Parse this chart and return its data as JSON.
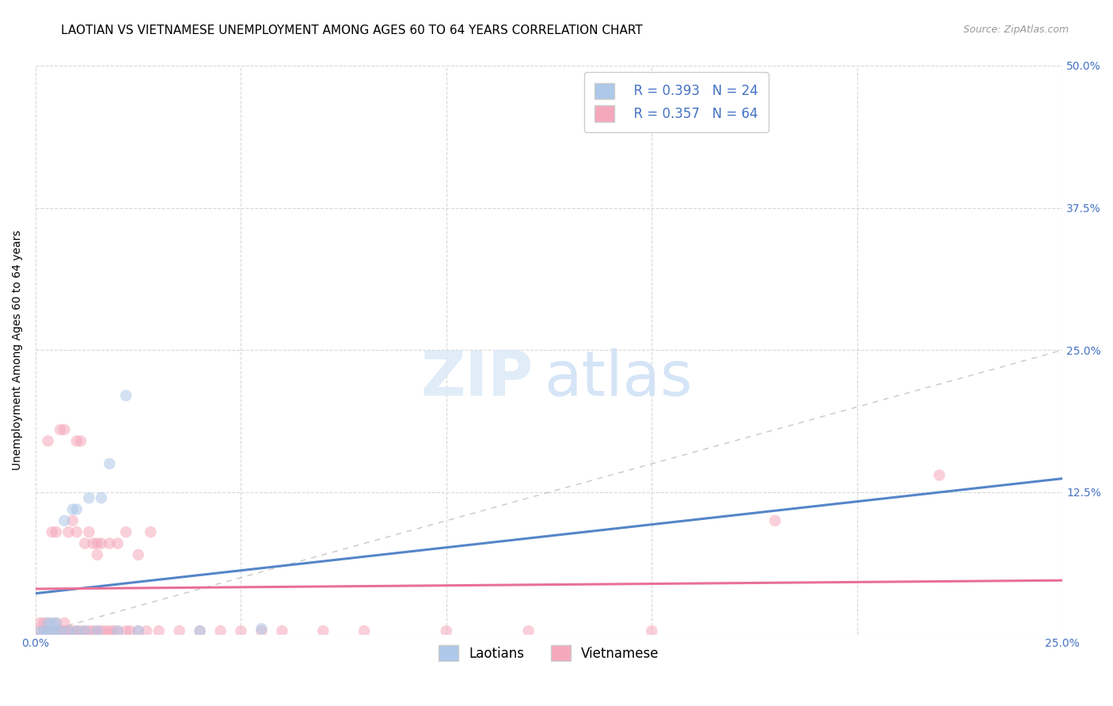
{
  "title": "LAOTIAN VS VIETNAMESE UNEMPLOYMENT AMONG AGES 60 TO 64 YEARS CORRELATION CHART",
  "source": "Source: ZipAtlas.com",
  "ylabel": "Unemployment Among Ages 60 to 64 years",
  "xlim": [
    0.0,
    0.25
  ],
  "ylim": [
    0.0,
    0.5
  ],
  "xticks": [
    0.0,
    0.05,
    0.1,
    0.15,
    0.2,
    0.25
  ],
  "yticks": [
    0.0,
    0.125,
    0.25,
    0.375,
    0.5
  ],
  "xtick_labels": [
    "0.0%",
    "",
    "",
    "",
    "",
    "25.0%"
  ],
  "ytick_labels_right": [
    "",
    "12.5%",
    "25.0%",
    "37.5%",
    "50.0%"
  ],
  "laotian_R": "0.393",
  "laotian_N": "24",
  "vietnamese_R": "0.357",
  "vietnamese_N": "64",
  "laotian_color": "#adc8e8",
  "vietnamese_color": "#f5a8bc",
  "laotian_line_color": "#5585c8",
  "vietnamese_line_color": "#e87098",
  "diagonal_color": "#c8c8c8",
  "laotian_x": [
    0.001,
    0.002,
    0.003,
    0.003,
    0.004,
    0.004,
    0.005,
    0.005,
    0.006,
    0.007,
    0.008,
    0.009,
    0.01,
    0.01,
    0.012,
    0.013,
    0.015,
    0.016,
    0.018,
    0.02,
    0.022,
    0.025,
    0.04,
    0.055
  ],
  "laotian_y": [
    0.002,
    0.003,
    0.002,
    0.01,
    0.003,
    0.01,
    0.003,
    0.01,
    0.003,
    0.1,
    0.003,
    0.11,
    0.003,
    0.11,
    0.003,
    0.12,
    0.003,
    0.12,
    0.15,
    0.003,
    0.21,
    0.003,
    0.003,
    0.005
  ],
  "vietnamese_x": [
    0.001,
    0.001,
    0.002,
    0.002,
    0.003,
    0.003,
    0.003,
    0.004,
    0.004,
    0.005,
    0.005,
    0.005,
    0.006,
    0.006,
    0.007,
    0.007,
    0.007,
    0.008,
    0.008,
    0.009,
    0.009,
    0.01,
    0.01,
    0.01,
    0.011,
    0.011,
    0.012,
    0.012,
    0.013,
    0.013,
    0.014,
    0.014,
    0.015,
    0.015,
    0.015,
    0.016,
    0.016,
    0.017,
    0.018,
    0.018,
    0.019,
    0.02,
    0.02,
    0.022,
    0.022,
    0.023,
    0.025,
    0.025,
    0.027,
    0.028,
    0.03,
    0.035,
    0.04,
    0.045,
    0.05,
    0.055,
    0.06,
    0.07,
    0.08,
    0.1,
    0.12,
    0.15,
    0.18,
    0.22
  ],
  "vietnamese_y": [
    0.003,
    0.01,
    0.003,
    0.01,
    0.003,
    0.01,
    0.17,
    0.003,
    0.09,
    0.003,
    0.01,
    0.09,
    0.003,
    0.18,
    0.003,
    0.01,
    0.18,
    0.003,
    0.09,
    0.003,
    0.1,
    0.003,
    0.09,
    0.17,
    0.003,
    0.17,
    0.003,
    0.08,
    0.003,
    0.09,
    0.003,
    0.08,
    0.003,
    0.07,
    0.08,
    0.003,
    0.08,
    0.003,
    0.003,
    0.08,
    0.003,
    0.003,
    0.08,
    0.003,
    0.09,
    0.003,
    0.003,
    0.07,
    0.003,
    0.09,
    0.003,
    0.003,
    0.003,
    0.003,
    0.003,
    0.003,
    0.003,
    0.003,
    0.003,
    0.003,
    0.003,
    0.003,
    0.1,
    0.14
  ],
  "background_color": "#ffffff",
  "grid_color": "#d8d8d8",
  "title_fontsize": 11,
  "axis_label_fontsize": 10,
  "tick_fontsize": 10,
  "legend_fontsize": 12,
  "marker_size": 110,
  "marker_alpha": 0.55,
  "laotian_line_x_end": 0.25,
  "vietnamese_line_x_end": 0.25
}
